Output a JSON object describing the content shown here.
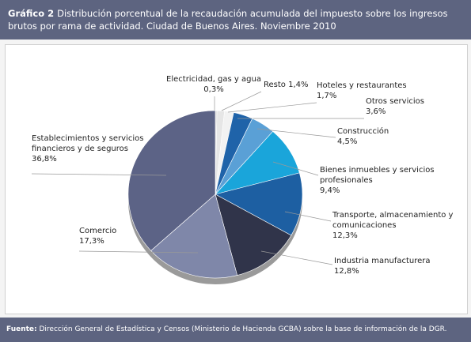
{
  "chart_data": {
    "type": "pie",
    "figure_label": "Gráfico 2",
    "title": "Distribución porcentual de la recaudación acumulada del impuesto sobre los ingresos brutos por rama de actividad. Ciudad de Buenos Aires. Noviembre 2010",
    "categories": [
      "Electricidad, gas y agua",
      "Resto",
      "Hoteles y restaurantes",
      "Otros servicios",
      "Construcción",
      "Bienes inmuebles y servicios profesionales",
      "Transporte, almacenamiento y comunicaciones",
      "Industria manufacturera",
      "Comercio",
      "Establecimientos y servicios financieros y de seguros"
    ],
    "values": [
      0.3,
      1.4,
      1.7,
      3.6,
      4.5,
      9.4,
      12.3,
      12.8,
      17.3,
      36.8
    ],
    "value_labels": [
      "0,3%",
      "1,4%",
      "1,7%",
      "3,6%",
      "4,5%",
      "9,4%",
      "12,3%",
      "12,8%",
      "17,3%",
      "36,8%"
    ],
    "colors": [
      "#d6d6d6",
      "#e6e6e6",
      "#f2f2f2",
      "#1f63a9",
      "#5aa0d6",
      "#1aa5da",
      "#1d5fa2",
      "#30344a",
      "#7f87a9",
      "#5c6386"
    ],
    "source_label": "Fuente:",
    "source": "Dirección General de Estadística y Censos (Ministerio de Hacienda GCBA) sobre la base de información de la DGR."
  }
}
